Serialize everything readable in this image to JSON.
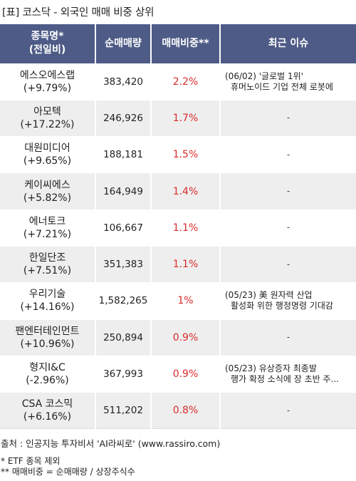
{
  "caption": "[표] 코스닥 - 외국인 매매 비중 상위",
  "headers": {
    "name_l1": "종목명*",
    "name_l2": "(전일비)",
    "volume": "순매매량",
    "ratio": "매매비중**",
    "issue": "최근 이슈"
  },
  "rows": [
    {
      "name": "에스오에스랩",
      "change": "(+9.79%)",
      "volume": "383,420",
      "ratio": "2.2%",
      "issue_l1": "(06/02) '글로벌 1위'",
      "issue_l2": "휴머노이드 기업 전체 로봇에"
    },
    {
      "name": "아모텍",
      "change": "(+17.22%)",
      "volume": "246,926",
      "ratio": "1.7%",
      "issue_l1": "-",
      "issue_l2": ""
    },
    {
      "name": "대원미디어",
      "change": "(+9.65%)",
      "volume": "188,181",
      "ratio": "1.5%",
      "issue_l1": "-",
      "issue_l2": ""
    },
    {
      "name": "케이씨에스",
      "change": "(+5.82%)",
      "volume": "164,949",
      "ratio": "1.4%",
      "issue_l1": "-",
      "issue_l2": ""
    },
    {
      "name": "에너토크",
      "change": "(+7.21%)",
      "volume": "106,667",
      "ratio": "1.1%",
      "issue_l1": "-",
      "issue_l2": ""
    },
    {
      "name": "한일단조",
      "change": "(+7.51%)",
      "volume": "351,383",
      "ratio": "1.1%",
      "issue_l1": "-",
      "issue_l2": ""
    },
    {
      "name": "우리기술",
      "change": "(+14.16%)",
      "volume": "1,582,265",
      "ratio": "1%",
      "issue_l1": "(05/23) 美 원자력 산업",
      "issue_l2": "활성화 위한 행정명령 기대감"
    },
    {
      "name": "팬엔터테인먼트",
      "change": "(+10.96%)",
      "volume": "250,894",
      "ratio": "0.9%",
      "issue_l1": "-",
      "issue_l2": ""
    },
    {
      "name": "형지I&C",
      "change": "(-2.96%)",
      "volume": "367,993",
      "ratio": "0.9%",
      "issue_l1": "(05/23) 유상증자 최종발",
      "issue_l2": "행가 확정 소식에 장 초반 주..."
    },
    {
      "name": "CSA 코스믹",
      "change": "(+6.16%)",
      "volume": "511,202",
      "ratio": "0.8%",
      "issue_l1": "-",
      "issue_l2": ""
    }
  ],
  "footer": {
    "source": "출처 : 인공지능 투자비서 'AI라씨로' (www.rassiro.com)",
    "note1": "* ETF 종목 제외",
    "note2": "** 매매비중 = 순매매량 / 상장주식수"
  },
  "colors": {
    "header_bg": "#4d5b86",
    "ratio_text": "#d92b2b",
    "stripe": "#eeeeee"
  }
}
